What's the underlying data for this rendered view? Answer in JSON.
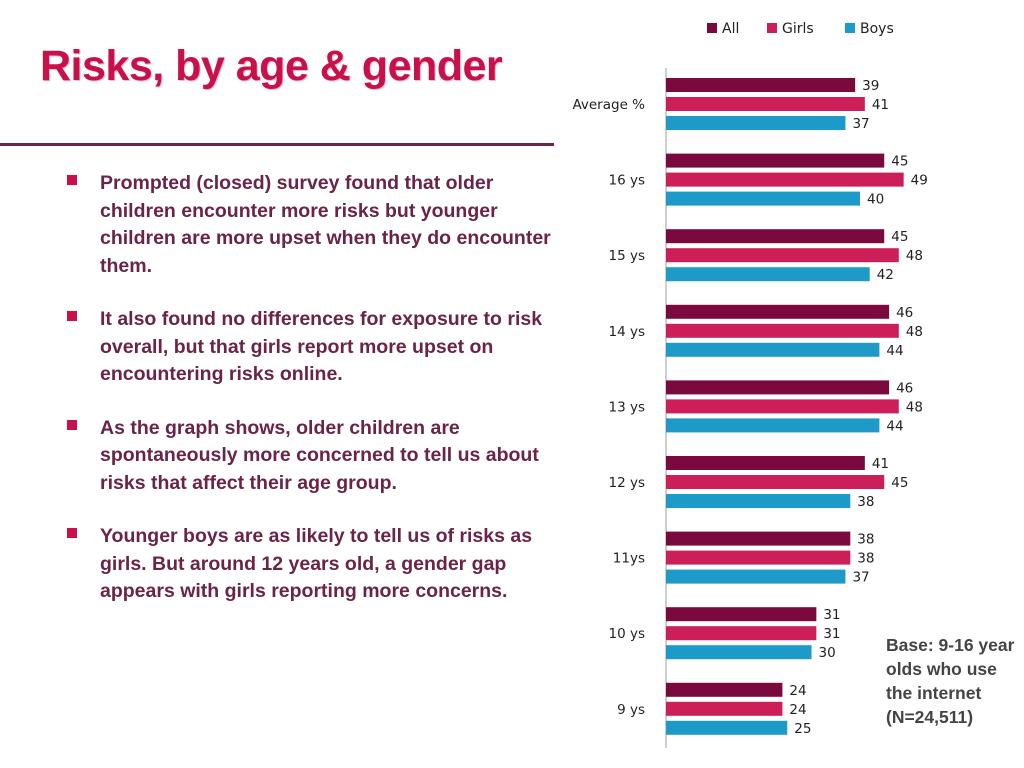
{
  "slide": {
    "title": "Risks, by age & gender",
    "bullets": [
      "Prompted (closed) survey found that older children encounter more risks but younger children are more upset when they do encounter them.",
      "It also found no differences for exposure to risk overall, but that girls report more upset on encountering risks online.",
      "As the graph shows, older children are spontaneously more concerned to tell us about risks that affect their age group.",
      "Younger boys are as likely to tell us of risks as girls. But around 12 years old, a gender gap appears with girls reporting more concerns."
    ],
    "base_note": "Base: 9-16 year olds who use the internet (N=24,511)"
  },
  "colors": {
    "title": "#c8104a",
    "body_text": "#6a2448",
    "all": "#7a0a3e",
    "girls": "#cc1f5a",
    "boys": "#1e9ac8"
  },
  "chart_data": {
    "type": "bar",
    "orientation": "horizontal",
    "categories": [
      "Average %",
      "16 ys",
      "15  ys",
      "14 ys",
      "13 ys",
      "12 ys",
      "11ys",
      "10 ys",
      "9 ys"
    ],
    "series": [
      {
        "name": "All",
        "color": "#7a0a3e",
        "values": [
          39,
          45,
          45,
          46,
          46,
          41,
          38,
          31,
          24
        ]
      },
      {
        "name": "Girls",
        "color": "#cc1f5a",
        "values": [
          41,
          49,
          48,
          48,
          48,
          45,
          38,
          31,
          24
        ]
      },
      {
        "name": "Boys",
        "color": "#1e9ac8",
        "values": [
          37,
          40,
          42,
          44,
          44,
          38,
          37,
          30,
          25
        ]
      }
    ],
    "xlim": [
      0,
      60
    ],
    "legend_position": "top",
    "grid": false
  }
}
